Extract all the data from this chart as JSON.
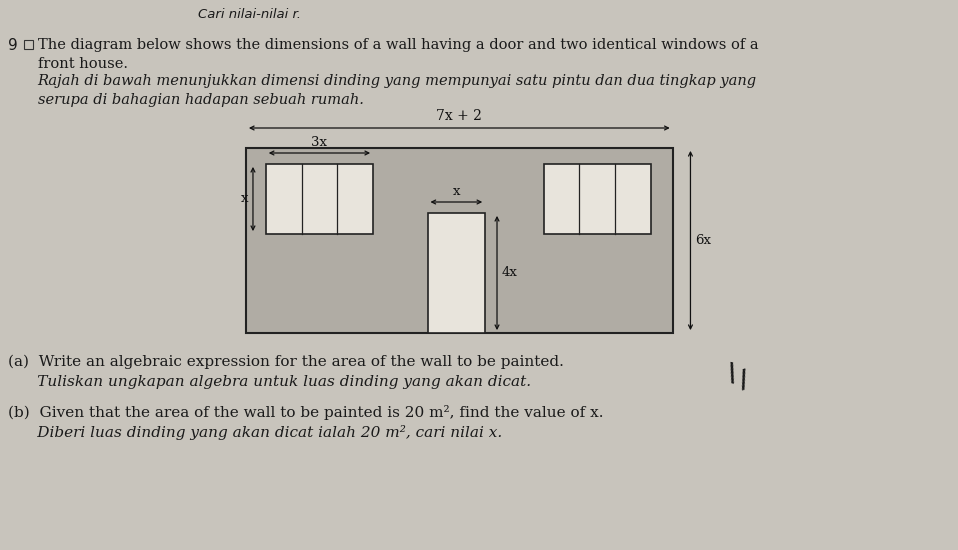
{
  "bg_color": "#c8c4bc",
  "wall_color": "#b0aca4",
  "opening_color": "#e8e4dc",
  "header_text": "Cari nilai-nilai r.",
  "label_top": "7x + 2",
  "label_window_width": "3x",
  "label_window_height": "x",
  "label_door_width": "x",
  "label_door_height": "4x",
  "label_wall_height": "6x",
  "q_num": "9",
  "text_en_1": "The diagram below shows the dimensions of a wall having a door and two identical windows of a",
  "text_en_2": "front house.",
  "text_my_1": "Rajah di bawah menunjukkan dimensi dinding yang mempunyai satu pintu dan dua tingkap yang",
  "text_my_2": "serupa di bahagian hadapan sebuah rumah.",
  "qa_en": "(a)  Write an algebraic expression for the area of the wall to be painted.",
  "qa_my": "      Tuliskan ungkapan algebra untuk luas dinding yang akan dicat.",
  "qb_en": "(b)  Given that the area of the wall to be painted is 20 m², find the value of x.",
  "qb_my": "      Diberi luas dinding yang akan dicat ialah 20 m², cari nilai x."
}
